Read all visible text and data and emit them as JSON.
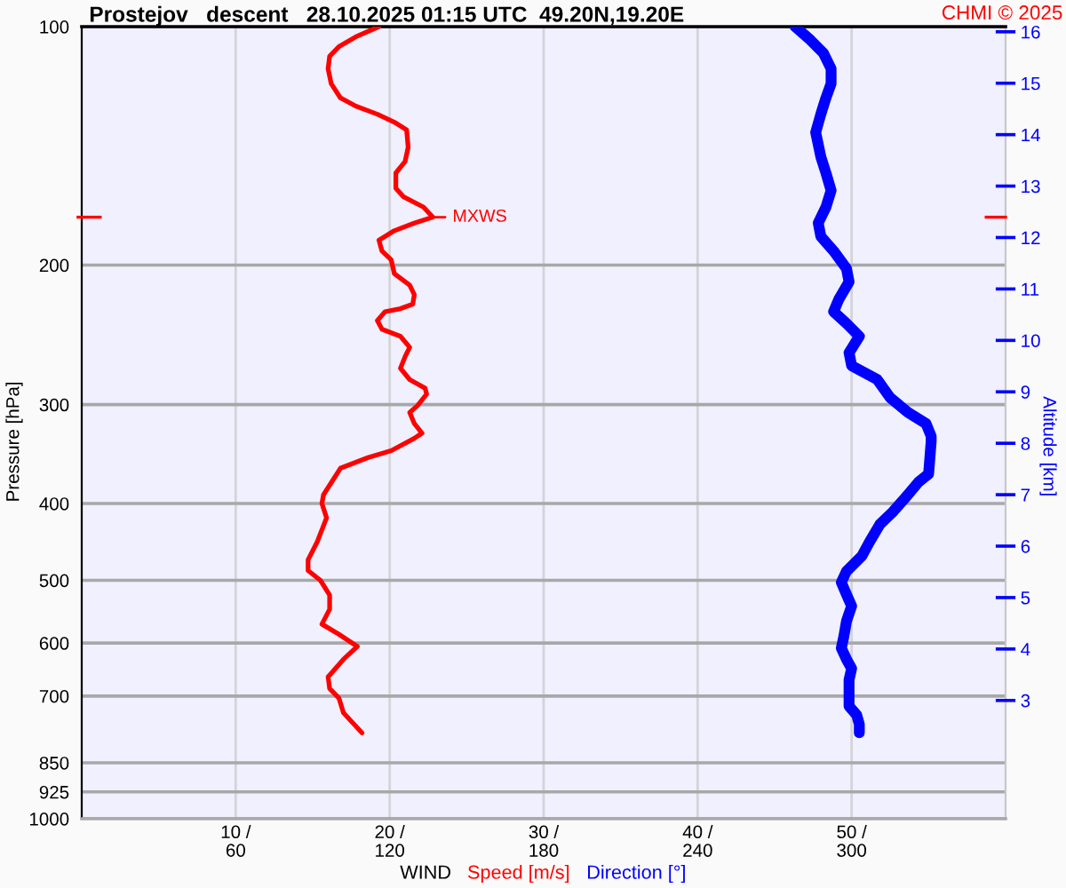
{
  "chart_data": {
    "type": "line",
    "orientation": "horizontal",
    "title": "Prostejov   descent   28.10.2025 01:15 UTC  49.20N,19.20E",
    "xlabel": "WIND",
    "ylabel": "Pressure [hPa]",
    "y2label": "Altitude [km]",
    "annotations": [
      {
        "text": "MXWS",
        "x": 22.8,
        "y": 174
      },
      "CHMI © 2025"
    ],
    "xlim": [
      0,
      60
    ],
    "xticks": [
      {
        "value": 10,
        "label": "10 /"
      },
      {
        "value": 20,
        "label": "20 /"
      },
      {
        "value": 30,
        "label": "30 /"
      },
      {
        "value": 40,
        "label": "40 /"
      },
      {
        "value": 50,
        "label": "50 /"
      }
    ],
    "x2lim": [
      0,
      360
    ],
    "x2ticks": [
      60,
      120,
      180,
      240,
      300
    ],
    "ylim": [
      1000,
      100
    ],
    "yticks": [
      100,
      200,
      300,
      400,
      500,
      600,
      700,
      850,
      925,
      1000
    ],
    "y2lim": [
      0.7,
      16.1
    ],
    "y2ticks": [
      3,
      4,
      5,
      6,
      7,
      8,
      9,
      10,
      11,
      12,
      13,
      14,
      15,
      16
    ],
    "log": "y",
    "grid": true,
    "legend": "bottom",
    "series": [
      {
        "name": "Speed [m/s]",
        "color": "#ff0000",
        "values": [
          19.3,
          17.8,
          16.7,
          16.1,
          16.0,
          16.2,
          16.8,
          17.8,
          19.2,
          20.3,
          21.1,
          21.2,
          21.0,
          20.4,
          20.4,
          20.9,
          22.2,
          22.8,
          21.6,
          20.3,
          19.3,
          19.5,
          20.1,
          20.3,
          21.3,
          21.6,
          21.5,
          20.7,
          19.7,
          19.2,
          19.5,
          20.7,
          21.3,
          21.0,
          20.7,
          21.3,
          22.3,
          22.4,
          21.8,
          21.3,
          21.6,
          22.1,
          21.6,
          20.1,
          18.6,
          16.8,
          16.3,
          15.7,
          15.6,
          15.9,
          15.3,
          14.7,
          14.7,
          15.5,
          16.1,
          16.1,
          15.6,
          16.7,
          17.9,
          17.0,
          16.0,
          16.1,
          16.7,
          17.0,
          18.2
        ],
        "x": [
          100,
          103,
          106,
          109,
          113,
          118,
          123,
          126,
          129,
          132,
          135,
          142,
          148,
          153,
          160,
          164,
          169,
          174,
          177,
          181,
          186,
          192,
          197,
          205,
          212,
          218,
          224,
          227,
          229,
          235,
          241,
          246,
          254,
          261,
          270,
          279,
          286,
          291,
          301,
          307,
          317,
          326,
          331,
          343,
          350,
          361,
          374,
          390,
          400,
          417,
          447,
          471,
          486,
          500,
          522,
          544,
          568,
          585,
          606,
          629,
          662,
          685,
          704,
          735,
          779
        ]
      },
      {
        "name": "Direction [°]",
        "color": "#0000ff",
        "axis": "x2",
        "values": [
          278,
          284,
          289,
          292,
          292,
          290,
          288,
          286,
          288,
          290,
          292,
          290,
          287,
          288,
          293,
          298,
          299,
          295,
          293,
          298,
          303,
          299,
          300,
          310,
          315,
          322,
          329,
          331,
          331,
          330,
          326,
          321,
          316,
          311,
          307,
          304,
          298,
          296,
          298,
          300,
          298,
          297,
          296,
          298,
          300,
          299,
          299,
          299,
          302,
          303,
          303
        ],
        "x": [
          100,
          104,
          108,
          113,
          118,
          123,
          129,
          136,
          146,
          153,
          161,
          169,
          177,
          184,
          192,
          202,
          210,
          221,
          229,
          237,
          246,
          258,
          268,
          279,
          294,
          307,
          317,
          329,
          334,
          367,
          376,
          393,
          410,
          425,
          447,
          466,
          487,
          503,
          521,
          539,
          563,
          588,
          609,
          629,
          646,
          668,
          697,
          721,
          740,
          760,
          779
        ]
      }
    ]
  }
}
